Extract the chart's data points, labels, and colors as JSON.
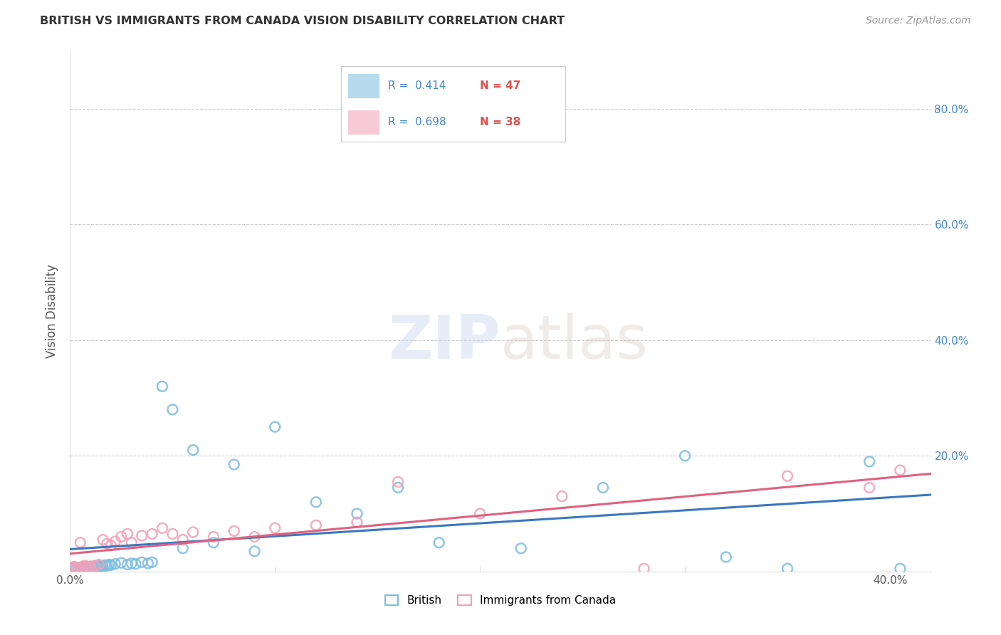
{
  "title": "BRITISH VS IMMIGRANTS FROM CANADA VISION DISABILITY CORRELATION CHART",
  "source": "Source: ZipAtlas.com",
  "ylabel": "Vision Disability",
  "xlim": [
    0.0,
    0.42
  ],
  "ylim": [
    0.0,
    0.9
  ],
  "yticks": [
    0.0,
    0.2,
    0.4,
    0.6,
    0.8
  ],
  "xticks": [
    0.0,
    0.4
  ],
  "xticklabels": [
    "0.0%",
    "40.0%"
  ],
  "right_yticks": [
    0.2,
    0.4,
    0.6,
    0.8
  ],
  "right_yticklabels": [
    "20.0%",
    "40.0%",
    "60.0%",
    "80.0%"
  ],
  "british_R": 0.414,
  "british_N": 47,
  "canada_R": 0.698,
  "canada_N": 38,
  "british_color": "#7bbde0",
  "canada_color": "#f4a0b8",
  "british_line_color": "#3878c0",
  "canada_line_color": "#e06080",
  "legend_british": "British",
  "legend_canada": "Immigrants from Canada",
  "british_x": [
    0.001,
    0.002,
    0.003,
    0.004,
    0.005,
    0.006,
    0.007,
    0.008,
    0.009,
    0.01,
    0.011,
    0.012,
    0.013,
    0.014,
    0.015,
    0.016,
    0.017,
    0.018,
    0.019,
    0.02,
    0.022,
    0.025,
    0.028,
    0.03,
    0.032,
    0.035,
    0.038,
    0.04,
    0.045,
    0.05,
    0.055,
    0.06,
    0.07,
    0.08,
    0.09,
    0.1,
    0.12,
    0.14,
    0.16,
    0.18,
    0.22,
    0.26,
    0.3,
    0.32,
    0.35,
    0.39,
    0.405
  ],
  "british_y": [
    0.005,
    0.008,
    0.006,
    0.007,
    0.006,
    0.008,
    0.007,
    0.009,
    0.006,
    0.008,
    0.007,
    0.009,
    0.01,
    0.008,
    0.01,
    0.009,
    0.011,
    0.01,
    0.012,
    0.011,
    0.013,
    0.015,
    0.012,
    0.014,
    0.013,
    0.016,
    0.014,
    0.016,
    0.32,
    0.28,
    0.04,
    0.21,
    0.05,
    0.185,
    0.035,
    0.25,
    0.12,
    0.1,
    0.145,
    0.05,
    0.04,
    0.145,
    0.2,
    0.025,
    0.005,
    0.19,
    0.005
  ],
  "canada_x": [
    0.001,
    0.002,
    0.003,
    0.005,
    0.006,
    0.007,
    0.008,
    0.009,
    0.01,
    0.012,
    0.014,
    0.016,
    0.018,
    0.02,
    0.022,
    0.025,
    0.028,
    0.03,
    0.035,
    0.04,
    0.045,
    0.05,
    0.055,
    0.06,
    0.07,
    0.08,
    0.09,
    0.1,
    0.12,
    0.14,
    0.16,
    0.2,
    0.24,
    0.28,
    0.35,
    0.39,
    0.405,
    0.004
  ],
  "canada_y": [
    0.006,
    0.008,
    0.006,
    0.05,
    0.008,
    0.01,
    0.008,
    0.006,
    0.009,
    0.01,
    0.012,
    0.055,
    0.048,
    0.045,
    0.052,
    0.06,
    0.065,
    0.05,
    0.062,
    0.065,
    0.075,
    0.065,
    0.055,
    0.068,
    0.06,
    0.07,
    0.06,
    0.075,
    0.08,
    0.085,
    0.155,
    0.1,
    0.13,
    0.005,
    0.165,
    0.145,
    0.175,
    0.005
  ],
  "british_trend": [
    0.005,
    0.205
  ],
  "canada_trend": [
    0.015,
    0.155
  ]
}
